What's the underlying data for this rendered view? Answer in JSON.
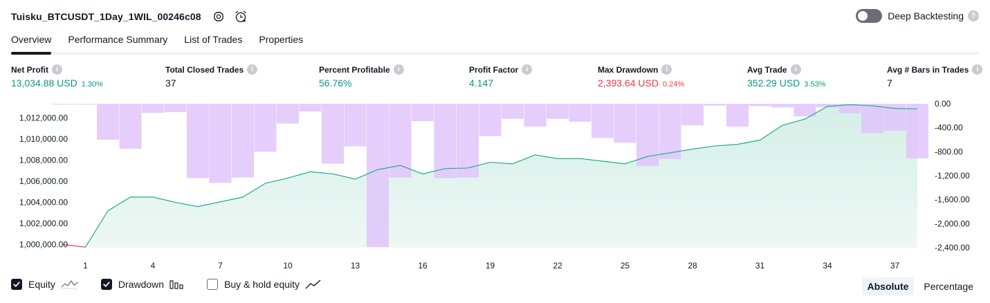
{
  "header": {
    "strategy_title": "Tuisku_BTCUSDT_1Day_1WIL_00246c08",
    "settings_icon": "gear-icon",
    "alert_icon": "alarm-clock-icon",
    "deep_backtesting_label": "Deep Backtesting",
    "deep_backtesting_on": false,
    "help_glyph": "?"
  },
  "tabs": [
    {
      "label": "Overview",
      "active": true
    },
    {
      "label": "Performance Summary",
      "active": false
    },
    {
      "label": "List of Trades",
      "active": false
    },
    {
      "label": "Properties",
      "active": false
    }
  ],
  "metrics": [
    {
      "label": "Net Profit",
      "value": "13,034.88 USD",
      "pct": "1.30%",
      "tone": "pos"
    },
    {
      "label": "Total Closed Trades",
      "value": "37",
      "pct": "",
      "tone": "plain"
    },
    {
      "label": "Percent Profitable",
      "value": "56.76%",
      "pct": "",
      "tone": "pos"
    },
    {
      "label": "Profit Factor",
      "value": "4.147",
      "pct": "",
      "tone": "pos"
    },
    {
      "label": "Max Drawdown",
      "value": "2,393.64 USD",
      "pct": "0.24%",
      "tone": "neg"
    },
    {
      "label": "Avg Trade",
      "value": "352.29 USD",
      "pct": "3.53%",
      "tone": "pos"
    },
    {
      "label": "Avg # Bars in Trades",
      "value": "7",
      "pct": "",
      "tone": "plain"
    }
  ],
  "chart_data": {
    "type": "line",
    "x": [
      0,
      1,
      2,
      3,
      4,
      5,
      6,
      7,
      8,
      9,
      10,
      11,
      12,
      13,
      14,
      15,
      16,
      17,
      18,
      19,
      20,
      21,
      22,
      23,
      24,
      25,
      26,
      27,
      28,
      29,
      30,
      31,
      32,
      33,
      34,
      35,
      36,
      37,
      38
    ],
    "xticks": [
      "1",
      "4",
      "7",
      "10",
      "13",
      "16",
      "19",
      "22",
      "25",
      "28",
      "31",
      "34",
      "37"
    ],
    "xtick_values": [
      1,
      4,
      7,
      10,
      13,
      16,
      19,
      22,
      25,
      28,
      31,
      34,
      37
    ],
    "equity": [
      1000000,
      999750,
      1003200,
      1004500,
      1004500,
      1004000,
      1003600,
      1004050,
      1004500,
      1005800,
      1006300,
      1006900,
      1006700,
      1006200,
      1007100,
      1007500,
      1006700,
      1007200,
      1007250,
      1007800,
      1007650,
      1008500,
      1008150,
      1008150,
      1007900,
      1007650,
      1008350,
      1008700,
      1009050,
      1009350,
      1009500,
      1009900,
      1011300,
      1011900,
      1013100,
      1013250,
      1013150,
      1012900,
      1012850
    ],
    "drawdown": [
      -5,
      -5,
      -600,
      -750,
      -150,
      -140,
      -1240,
      -1320,
      -1230,
      -800,
      -330,
      -130,
      -1000,
      -710,
      -2390,
      -1230,
      -290,
      -1240,
      -1230,
      -540,
      -250,
      -380,
      -250,
      -300,
      -570,
      -650,
      -1040,
      -920,
      -360,
      -30,
      -380,
      -40,
      -60,
      -210,
      -60,
      -160,
      -490,
      -450,
      -910
    ],
    "equity_ylim": [
      999000,
      1013500
    ],
    "equity_yticks": [
      "1,000,000.00",
      "1,002,000.00",
      "1,004,000.00",
      "1,006,000.00",
      "1,008,000.00",
      "1,010,000.00",
      "1,012,000.00"
    ],
    "equity_ytick_values": [
      1000000,
      1002000,
      1004000,
      1006000,
      1008000,
      1010000,
      1012000
    ],
    "drawdown_ylim": [
      -2400,
      0
    ],
    "drawdown_yticks": [
      "0.00",
      "-400.00",
      "-800.00",
      "-1,200.00",
      "-1,600.00",
      "-2,000.00",
      "-2,400.00"
    ],
    "drawdown_ytick_values": [
      0,
      -400,
      -800,
      -1200,
      -1600,
      -2000,
      -2400
    ],
    "colors": {
      "equity_line": "#22ab94",
      "equity_negative": "#f23645",
      "equity_fill": "#d4efe7",
      "drawdown_bar": "#e1c4fb"
    }
  },
  "legend": {
    "equity": {
      "label": "Equity",
      "checked": true,
      "icon": "equity-line-icon"
    },
    "drawdown": {
      "label": "Drawdown",
      "checked": true,
      "icon": "drawdown-bars-icon"
    },
    "buyhold": {
      "label": "Buy & hold equity",
      "checked": false,
      "icon": "buyhold-line-icon"
    }
  },
  "view_toggle": {
    "absolute_label": "Absolute",
    "percentage_label": "Percentage",
    "selected": "absolute"
  }
}
